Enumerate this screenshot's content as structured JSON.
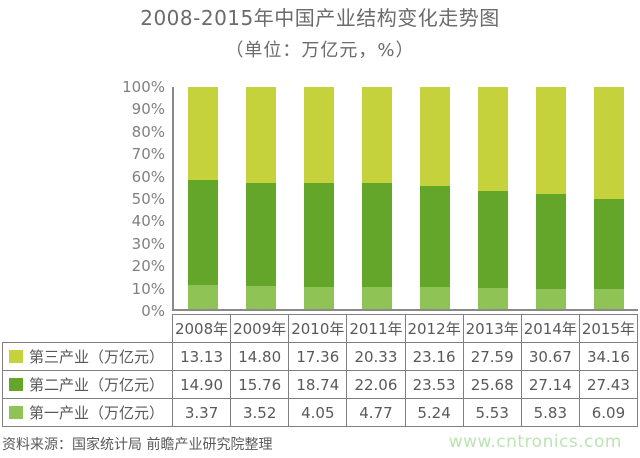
{
  "title": "2008-2015年中国产业结构变化走势图",
  "subtitle": "（单位：万亿元，%）",
  "chart_data": {
    "type": "bar",
    "variant": "100%-stacked-column",
    "grid": false,
    "legend_position": "table-left",
    "categories": [
      "2008年",
      "2009年",
      "2010年",
      "2011年",
      "2012年",
      "2013年",
      "2014年",
      "2015年"
    ],
    "series": [
      {
        "key": "tertiary",
        "name": "第三产业（万亿元）",
        "color": "#c6d23c",
        "values": [
          13.13,
          14.8,
          17.36,
          20.33,
          23.16,
          27.59,
          30.67,
          34.16
        ]
      },
      {
        "key": "secondary",
        "name": "第二产业（万亿元）",
        "color": "#64a62a",
        "values": [
          14.9,
          15.76,
          18.74,
          22.06,
          23.53,
          25.68,
          27.14,
          27.43
        ]
      },
      {
        "key": "primary",
        "name": "第一产业（万亿元）",
        "color": "#90c355",
        "values": [
          3.37,
          3.52,
          4.05,
          4.77,
          5.24,
          5.53,
          5.83,
          6.09
        ]
      }
    ],
    "y_axis": {
      "ticks": [
        "100%",
        "90%",
        "80%",
        "70%",
        "60%",
        "50%",
        "40%",
        "30%",
        "20%",
        "10%",
        "0%"
      ],
      "ylim": [
        0,
        100
      ],
      "unit": "%"
    },
    "value_decimals": 2
  },
  "footer": {
    "source": "资料来源：国家统计局 前瞻产业研究院整理",
    "watermark": "www.cntronics.com"
  },
  "colors": {
    "title_text": "#6b6b6b",
    "axis_text": "#808080",
    "table_text": "#595959",
    "table_border": "#7f7f7f",
    "axis_line": "#8a8a8a",
    "watermark": "#bce4b3",
    "background": "#ffffff"
  }
}
